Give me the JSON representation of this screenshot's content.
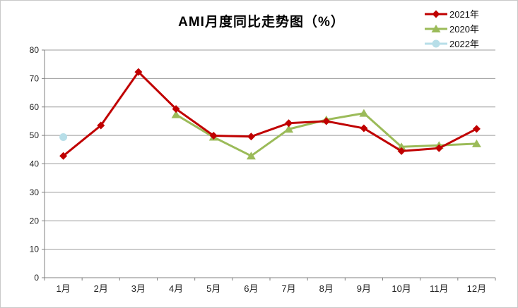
{
  "window": {
    "background": "#ffffff",
    "border_color": "#c9c9c9"
  },
  "chart_data": {
    "type": "line",
    "title": "AMI月度同比走势图（%）",
    "categories": [
      "1月",
      "2月",
      "3月",
      "4月",
      "5月",
      "6月",
      "7月",
      "8月",
      "9月",
      "10月",
      "11月",
      "12月"
    ],
    "series": [
      {
        "name": "2021年",
        "color": "#C00000",
        "marker": "diamond",
        "values": [
          42.8,
          53.5,
          72.3,
          59.3,
          49.9,
          49.6,
          54.3,
          55.0,
          52.5,
          44.5,
          45.5,
          52.3
        ]
      },
      {
        "name": "2020年",
        "color": "#9BBB59",
        "marker": "triangle",
        "values": [
          null,
          null,
          null,
          57.3,
          49.4,
          42.8,
          52.2,
          55.5,
          57.8,
          46.0,
          46.5,
          47.1
        ]
      },
      {
        "name": "2022年",
        "color": "#B7DEE8",
        "marker": "circle",
        "values": [
          49.4,
          null,
          null,
          null,
          null,
          null,
          null,
          null,
          null,
          null,
          null,
          null
        ]
      }
    ],
    "y_axis": {
      "min": 0,
      "max": 80,
      "step": 10,
      "ticks": [
        "0",
        "10",
        "20",
        "30",
        "40",
        "50",
        "60",
        "70",
        "80"
      ]
    },
    "x_axis_label": "",
    "y_axis_label": "",
    "grid": "horizontal",
    "legend_position": "top-right",
    "style": {
      "gridline_color": "#9c9c9c",
      "axis_color": "#808080",
      "tick_text_color": "#1f1f1f",
      "line_width": 3
    }
  }
}
